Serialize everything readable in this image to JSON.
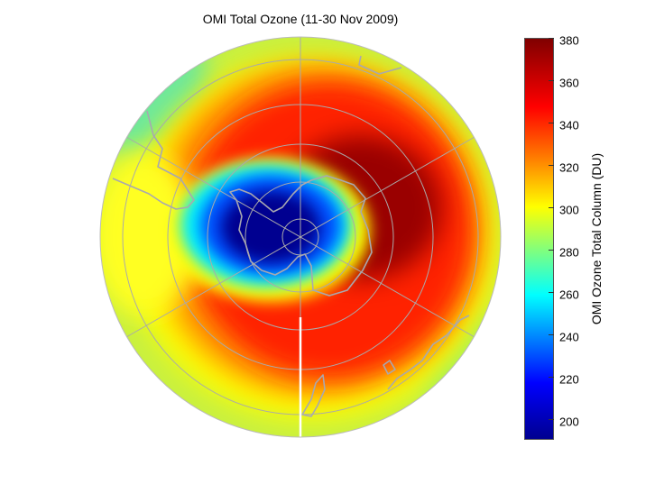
{
  "title": "OMI Total Ozone (11-30 Nov 2009)",
  "colorbar": {
    "label": "OMI Ozone Total Column (DU)",
    "ticks": [
      "380",
      "360",
      "340",
      "320",
      "300",
      "280",
      "260",
      "240",
      "220",
      "200"
    ],
    "range": [
      190,
      380
    ],
    "colormap": [
      "#00008f",
      "#0000ff",
      "#00ffff",
      "#7fff7f",
      "#ffff00",
      "#ff7f00",
      "#ff0000",
      "#800000"
    ]
  },
  "map": {
    "projection": "south polar stereographic",
    "ozone_hole_min_du": 195,
    "collar_max_du": 380
  }
}
